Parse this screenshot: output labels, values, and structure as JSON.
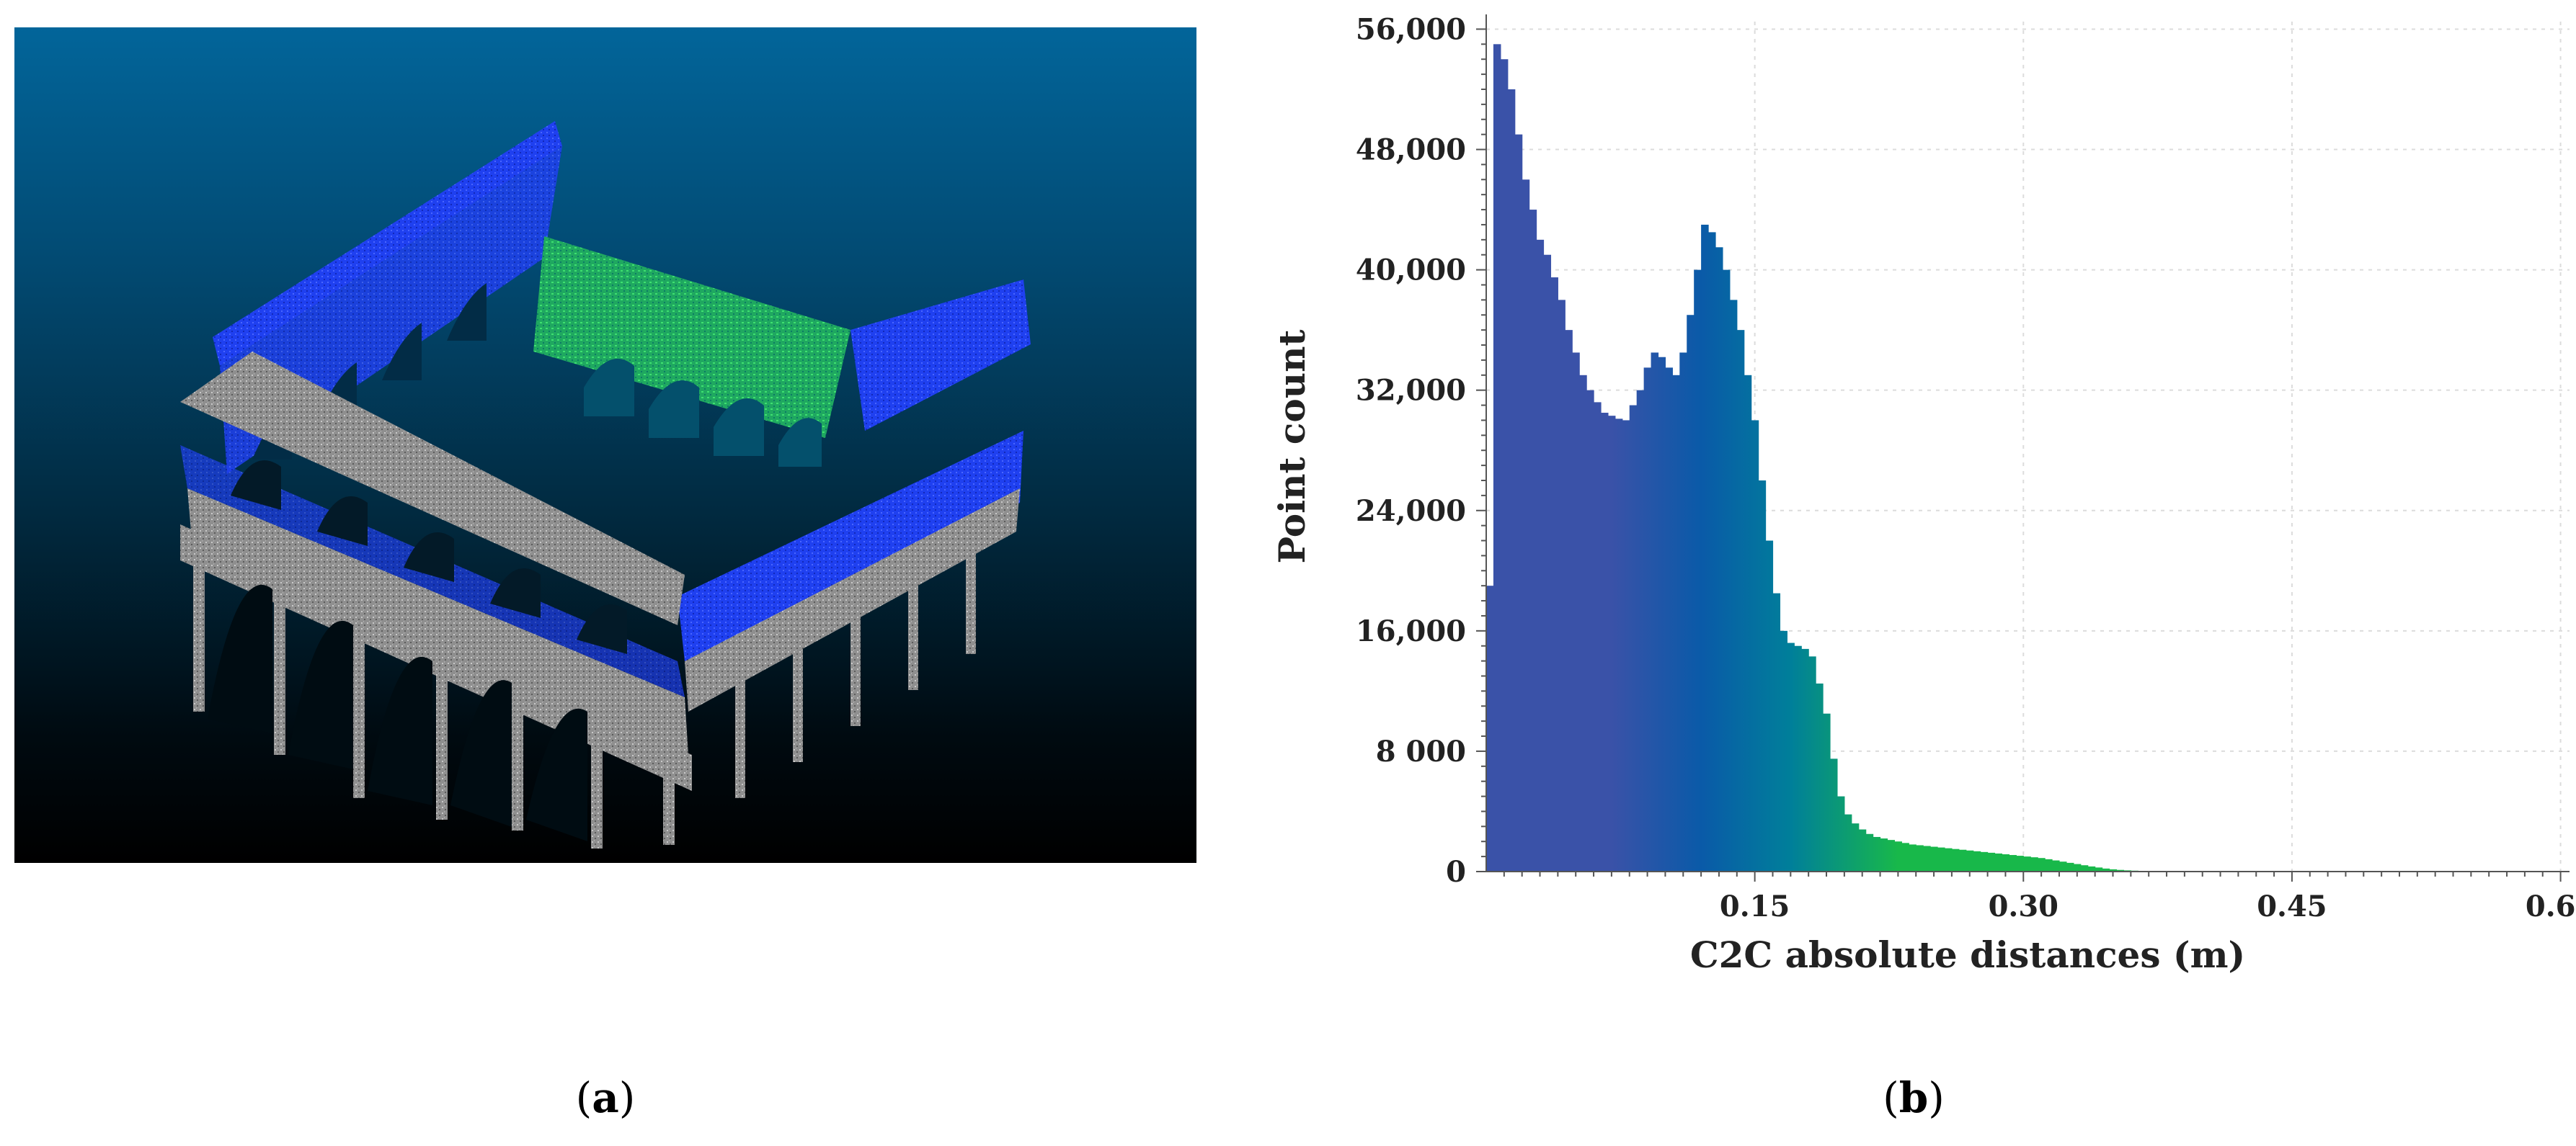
{
  "panel_a": {
    "caption_open": "(",
    "caption_letter": "a",
    "caption_close": ")"
  },
  "panel_b": {
    "caption_open": "(",
    "caption_letter": "b",
    "caption_close": ")"
  },
  "colors": {
    "bar_low": "#3a52a8",
    "bar_mid": "#0a5aa8",
    "bar_teal": "#007f9a",
    "bar_high": "#18b84a",
    "grid": "#dcdcdc",
    "scene_blue": "#1e3cff",
    "scene_green": "#22cc55",
    "scene_gray": "#9a9a9a"
  },
  "chart_data": {
    "type": "bar",
    "title": "",
    "xlabel": "C2C absolute distances (m)",
    "ylabel": "Point count",
    "xlim": [
      0,
      0.605
    ],
    "ylim": [
      0,
      56500
    ],
    "x_ticks": [
      0.15,
      0.3,
      0.45,
      0.6
    ],
    "x_tick_labels": [
      "0.15",
      "0.30",
      "0.45",
      "0.60"
    ],
    "y_ticks": [
      0,
      8000,
      16000,
      24000,
      32000,
      40000,
      48000,
      56000
    ],
    "y_tick_labels": [
      "0",
      "8 000",
      "16,000",
      "24,000",
      "32,000",
      "40,000",
      "48,000",
      "56,000"
    ],
    "grid": true,
    "bin_width": 0.004,
    "bin_start": 0,
    "values": [
      19000,
      55000,
      54000,
      52000,
      49000,
      46000,
      44000,
      42000,
      41000,
      39500,
      38000,
      36000,
      34500,
      33000,
      32000,
      31200,
      30500,
      30300,
      30100,
      30000,
      31000,
      32000,
      33500,
      34500,
      34200,
      33500,
      33000,
      34500,
      37000,
      40000,
      43000,
      42500,
      41500,
      40000,
      38000,
      36000,
      33000,
      30000,
      26000,
      22000,
      18500,
      16000,
      15200,
      15000,
      14800,
      14300,
      12500,
      10500,
      7500,
      5000,
      3800,
      3200,
      2800,
      2500,
      2300,
      2200,
      2100,
      2000,
      1900,
      1800,
      1750,
      1700,
      1650,
      1600,
      1550,
      1500,
      1450,
      1400,
      1350,
      1300,
      1250,
      1200,
      1150,
      1100,
      1050,
      1000,
      950,
      900,
      820,
      740,
      660,
      580,
      500,
      420,
      340,
      270,
      200,
      150,
      110,
      80,
      60,
      45,
      35,
      25,
      18,
      12,
      8,
      5,
      3,
      2
    ]
  }
}
